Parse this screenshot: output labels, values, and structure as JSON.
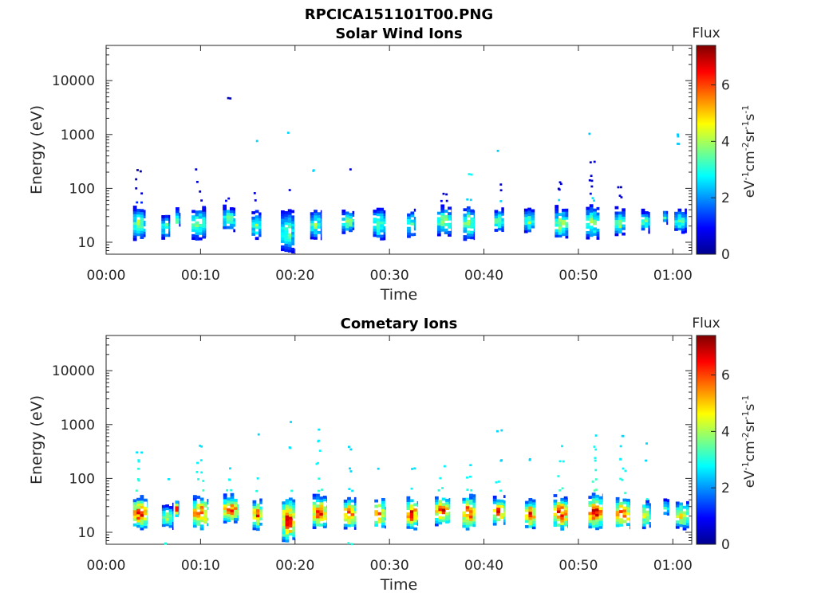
{
  "figure": {
    "title": "RPCICA151101T00.PNG"
  },
  "chart_data": [
    {
      "type": "heatmap",
      "title": "Solar Wind Ions",
      "xlabel": "Time",
      "ylabel": "Energy (eV)",
      "xticks": [
        "00:00",
        "00:10",
        "00:20",
        "00:30",
        "00:40",
        "00:50",
        "01:00"
      ],
      "xlim_minutes": [
        0,
        62
      ],
      "yscale": "log",
      "ylim": [
        6,
        45000
      ],
      "yticks": [
        10,
        100,
        1000,
        10000
      ],
      "ytick_labels": [
        "10",
        "100",
        "1000",
        "10000"
      ],
      "colorbar": {
        "title": "Flux",
        "unit_label": "eV-1cm-2sr-1s-1",
        "range": [
          0,
          7.4
        ],
        "ticks": [
          0,
          2,
          4,
          6
        ],
        "colormap": "jet"
      },
      "scans": [
        {
          "t": 3.5,
          "w": 1.3,
          "core": [
            12,
            40
          ],
          "peak": 4.5,
          "tail": [
            [
              50,
              1.2
            ],
            [
              75,
              0.6
            ],
            [
              100,
              0.6
            ],
            [
              140,
              0.5
            ],
            [
              200,
              0.4
            ]
          ]
        },
        {
          "t": 6.3,
          "w": 0.9,
          "core": [
            12,
            30
          ],
          "peak": 4.0,
          "tail": []
        },
        {
          "t": 7.6,
          "w": 0.5,
          "core": [
            20,
            36
          ],
          "peak": 4.5,
          "tail": []
        },
        {
          "t": 9.8,
          "w": 1.5,
          "core": [
            12,
            40
          ],
          "peak": 4.2,
          "tail": [
            [
              55,
              0.8
            ],
            [
              80,
              0.5
            ],
            [
              120,
              0.6
            ],
            [
              220,
              0.5
            ]
          ]
        },
        {
          "t": 13.0,
          "w": 1.3,
          "core": [
            17,
            42
          ],
          "peak": 4.3,
          "tail": [
            [
              60,
              0.9
            ],
            [
              4500,
              0.5
            ]
          ]
        },
        {
          "t": 15.9,
          "w": 1.0,
          "core": [
            12,
            35
          ],
          "peak": 4.0,
          "tail": [
            [
              55,
              0.9
            ],
            [
              75,
              0.6
            ],
            [
              700,
              2.5
            ]
          ]
        },
        {
          "t": 19.2,
          "w": 1.4,
          "core": [
            7,
            36
          ],
          "peak": 4.0,
          "tail": [
            [
              95,
              0.6
            ],
            [
              1050,
              2.5
            ]
          ]
        },
        {
          "t": 22.2,
          "w": 1.2,
          "core": [
            12,
            38
          ],
          "peak": 4.0,
          "tail": [
            [
              200,
              2.5
            ]
          ]
        },
        {
          "t": 25.6,
          "w": 1.3,
          "core": [
            16,
            36
          ],
          "peak": 4.5,
          "tail": [
            [
              205,
              0.5
            ]
          ]
        },
        {
          "t": 28.9,
          "w": 1.3,
          "core": [
            12,
            40
          ],
          "peak": 4.2,
          "tail": []
        },
        {
          "t": 32.3,
          "w": 0.9,
          "core": [
            12,
            36
          ],
          "peak": 4.0,
          "tail": []
        },
        {
          "t": 35.8,
          "w": 1.5,
          "core": [
            14,
            42
          ],
          "peak": 4.4,
          "tail": [
            [
              55,
              0.8
            ],
            [
              80,
              0.5
            ]
          ]
        },
        {
          "t": 38.4,
          "w": 1.2,
          "core": [
            12,
            42
          ],
          "peak": 4.6,
          "tail": [
            [
              60,
              2.5
            ],
            [
              170,
              2.8
            ]
          ]
        },
        {
          "t": 41.6,
          "w": 1.0,
          "core": [
            16,
            38
          ],
          "peak": 4.4,
          "tail": [
            [
              55,
              2.5
            ],
            [
              85,
              0.6
            ],
            [
              115,
              0.5
            ],
            [
              480,
              2.4
            ]
          ]
        },
        {
          "t": 44.8,
          "w": 1.1,
          "core": [
            16,
            38
          ],
          "peak": 4.2,
          "tail": []
        },
        {
          "t": 48.2,
          "w": 1.4,
          "core": [
            12,
            40
          ],
          "peak": 4.5,
          "tail": [
            [
              60,
              2.6
            ],
            [
              90,
              0.6
            ],
            [
              120,
              0.6
            ]
          ]
        },
        {
          "t": 51.5,
          "w": 1.4,
          "core": [
            12,
            44
          ],
          "peak": 4.3,
          "tail": [
            [
              60,
              2.6
            ],
            [
              80,
              1.0
            ],
            [
              100,
              0.5
            ],
            [
              130,
              0.5
            ],
            [
              170,
              0.5
            ],
            [
              290,
              0.6
            ],
            [
              1050,
              2.4
            ]
          ]
        },
        {
          "t": 54.4,
          "w": 1.1,
          "core": [
            14,
            38
          ],
          "peak": 4.2,
          "tail": [
            [
              70,
              0.6
            ],
            [
              95,
              0.5
            ]
          ]
        },
        {
          "t": 57.1,
          "w": 0.9,
          "core": [
            16,
            36
          ],
          "peak": 4.0,
          "tail": []
        },
        {
          "t": 59.2,
          "w": 0.5,
          "core": [
            22,
            38
          ],
          "peak": 3.5,
          "tail": []
        },
        {
          "t": 60.8,
          "w": 1.3,
          "core": [
            16,
            38
          ],
          "peak": 3.8,
          "tail": [
            [
              650,
              2.4
            ],
            [
              950,
              2.4
            ]
          ]
        }
      ]
    },
    {
      "type": "heatmap",
      "title": "Cometary Ions",
      "xlabel": "Time",
      "ylabel": "Energy (eV)",
      "xticks": [
        "00:00",
        "00:10",
        "00:20",
        "00:30",
        "00:40",
        "00:50",
        "01:00"
      ],
      "xlim_minutes": [
        0,
        62
      ],
      "yscale": "log",
      "ylim": [
        6,
        45000
      ],
      "yticks": [
        10,
        100,
        1000,
        10000
      ],
      "ytick_labels": [
        "10",
        "100",
        "1000",
        "10000"
      ],
      "colorbar": {
        "title": "Flux",
        "unit_label": "eV-1cm-2sr-1s-1",
        "range": [
          0,
          7.4
        ],
        "ticks": [
          0,
          2,
          4,
          6
        ],
        "colormap": "jet"
      },
      "scans": [
        {
          "t": 3.6,
          "w": 1.5,
          "core": [
            12,
            42
          ],
          "peak": 7.0,
          "tail": [
            [
              60,
              3.2
            ],
            [
              90,
              3.0
            ],
            [
              140,
              3.0
            ],
            [
              200,
              2.8
            ],
            [
              280,
              2.6
            ]
          ]
        },
        {
          "t": 6.5,
          "w": 1.2,
          "core": [
            12,
            30
          ],
          "peak": 4.5,
          "tail": [
            [
              6,
              3.0
            ],
            [
              100,
              2.6
            ]
          ]
        },
        {
          "t": 7.5,
          "w": 0.4,
          "core": [
            20,
            38
          ],
          "peak": 6.5,
          "tail": []
        },
        {
          "t": 10.0,
          "w": 1.6,
          "core": [
            12,
            42
          ],
          "peak": 7.0,
          "tail": [
            [
              60,
              3.2
            ],
            [
              90,
              3.0
            ],
            [
              130,
              2.8
            ],
            [
              200,
              2.7
            ],
            [
              380,
              2.6
            ]
          ]
        },
        {
          "t": 13.2,
          "w": 1.6,
          "core": [
            16,
            44
          ],
          "peak": 6.8,
          "tail": [
            [
              60,
              3.0
            ],
            [
              90,
              2.8
            ],
            [
              140,
              2.6
            ]
          ]
        },
        {
          "t": 16.0,
          "w": 1.0,
          "core": [
            12,
            38
          ],
          "peak": 6.5,
          "tail": [
            [
              60,
              3.0
            ],
            [
              100,
              2.7
            ],
            [
              600,
              2.5
            ]
          ]
        },
        {
          "t": 19.3,
          "w": 1.4,
          "core": [
            7,
            40
          ],
          "peak": 7.2,
          "tail": [
            [
              60,
              3.0
            ],
            [
              350,
              2.6
            ],
            [
              1050,
              2.5
            ]
          ]
        },
        {
          "t": 22.6,
          "w": 1.5,
          "core": [
            12,
            44
          ],
          "peak": 6.8,
          "tail": [
            [
              60,
              3.2
            ],
            [
              100,
              3.0
            ],
            [
              180,
              2.8
            ],
            [
              300,
              2.8
            ],
            [
              500,
              2.7
            ],
            [
              750,
              2.6
            ]
          ]
        },
        {
          "t": 25.8,
          "w": 1.3,
          "core": [
            12,
            40
          ],
          "peak": 7.0,
          "tail": [
            [
              6,
              3.0
            ],
            [
              60,
              2.6
            ],
            [
              140,
              2.5
            ],
            [
              350,
              2.5
            ]
          ]
        },
        {
          "t": 29.0,
          "w": 1.2,
          "core": [
            12,
            40
          ],
          "peak": 6.4,
          "tail": [
            [
              150,
              2.5
            ]
          ]
        },
        {
          "t": 32.4,
          "w": 1.2,
          "core": [
            12,
            40
          ],
          "peak": 7.0,
          "tail": [
            [
              60,
              2.8
            ],
            [
              150,
              2.6
            ]
          ]
        },
        {
          "t": 35.6,
          "w": 1.6,
          "core": [
            14,
            44
          ],
          "peak": 7.0,
          "tail": [
            [
              60,
              3.0
            ],
            [
              100,
              2.8
            ],
            [
              160,
              2.7
            ]
          ]
        },
        {
          "t": 38.4,
          "w": 1.4,
          "core": [
            12,
            44
          ],
          "peak": 7.2,
          "tail": [
            [
              60,
              3.0
            ],
            [
              100,
              2.8
            ],
            [
              180,
              2.6
            ]
          ]
        },
        {
          "t": 41.6,
          "w": 1.3,
          "core": [
            14,
            42
          ],
          "peak": 6.8,
          "tail": [
            [
              55,
              3.0
            ],
            [
              80,
              2.8
            ],
            [
              220,
              2.5
            ],
            [
              750,
              2.5
            ]
          ]
        },
        {
          "t": 44.9,
          "w": 1.1,
          "core": [
            12,
            38
          ],
          "peak": 6.8,
          "tail": [
            [
              220,
              2.5
            ]
          ]
        },
        {
          "t": 48.1,
          "w": 1.5,
          "core": [
            12,
            42
          ],
          "peak": 7.2,
          "tail": [
            [
              60,
              3.2
            ],
            [
              100,
              3.0
            ],
            [
              200,
              2.8
            ],
            [
              400,
              2.7
            ]
          ]
        },
        {
          "t": 51.8,
          "w": 1.5,
          "core": [
            12,
            46
          ],
          "peak": 7.3,
          "tail": [
            [
              60,
              3.4
            ],
            [
              90,
              3.2
            ],
            [
              140,
              3.0
            ],
            [
              220,
              2.9
            ],
            [
              350,
              2.8
            ],
            [
              620,
              2.6
            ]
          ]
        },
        {
          "t": 54.7,
          "w": 1.5,
          "core": [
            12,
            40
          ],
          "peak": 7.0,
          "tail": [
            [
              55,
              3.2
            ],
            [
              90,
              3.0
            ],
            [
              140,
              2.8
            ],
            [
              230,
              2.7
            ],
            [
              400,
              2.6
            ],
            [
              600,
              2.5
            ]
          ]
        },
        {
          "t": 57.2,
          "w": 0.9,
          "core": [
            12,
            36
          ],
          "peak": 5.5,
          "tail": [
            [
              40,
              3.0
            ],
            [
              200,
              2.5
            ],
            [
              420,
              2.5
            ]
          ]
        },
        {
          "t": 59.3,
          "w": 0.6,
          "core": [
            20,
            40
          ],
          "peak": 4.0,
          "tail": []
        },
        {
          "t": 61.0,
          "w": 1.4,
          "core": [
            12,
            36
          ],
          "peak": 5.5,
          "tail": []
        }
      ]
    }
  ]
}
